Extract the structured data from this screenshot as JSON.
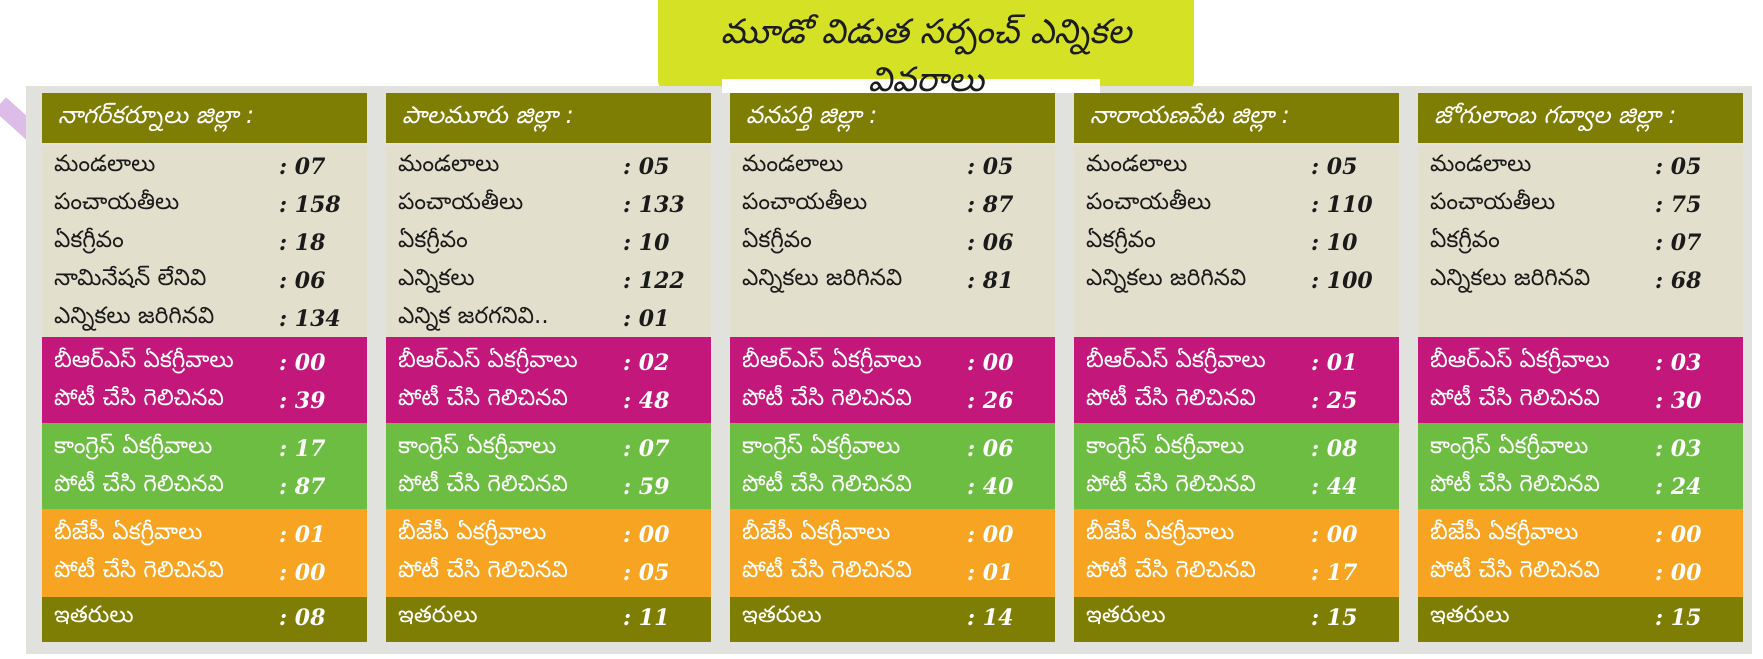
{
  "title": "మూడో విడుత సర్పంచ్ ఎన్నికల వివరాలు",
  "colors": {
    "header": "#7e7d04",
    "info_bg": "#e3dfcd",
    "brs": "#c4177c",
    "congress": "#6ebd43",
    "bjp": "#f7a422",
    "title_bg": "#d4e125"
  },
  "districts": [
    {
      "name": "నాగర్‌కర్నూలు జిల్లా :",
      "info": [
        {
          "label": "మండలాలు",
          "value": ": 07"
        },
        {
          "label": "పంచాయతీలు",
          "value": ": 158"
        },
        {
          "label": "ఏకగ్రీవం",
          "value": ": 18"
        },
        {
          "label": "నామినేషన్ లేనివి",
          "value": ":  06"
        },
        {
          "label": "ఎన్నికలు జరిగినవి",
          "value": ": 134"
        }
      ],
      "brs": [
        {
          "label": "బీఆర్ఎస్ ఏకగ్రీవాలు",
          "value": ": 00"
        },
        {
          "label": "పోటీ చేసి గెలిచినవి",
          "value": ": 39"
        }
      ],
      "congress": [
        {
          "label": "కాంగ్రెస్ ఏకగ్రీవాలు",
          "value": ": 17"
        },
        {
          "label": "పోటీ చేసి గెలిచినవి",
          "value": ": 87"
        }
      ],
      "bjp": [
        {
          "label": "బీజేపీ ఏకగ్రీవాలు",
          "value": ": 01"
        },
        {
          "label": "పోటీ చేసి గెలిచినవి",
          "value": ": 00"
        }
      ],
      "others": {
        "label": "ఇతరులు",
        "value": ": 08"
      }
    },
    {
      "name": "పాలమూరు జిల్లా :",
      "info": [
        {
          "label": "మండలాలు",
          "value": ": 05"
        },
        {
          "label": "పంచాయతీలు",
          "value": ": 133"
        },
        {
          "label": "ఏకగ్రీవం",
          "value": ": 10"
        },
        {
          "label": "ఎన్నికలు",
          "value": ": 122"
        },
        {
          "label": "ఎన్నిక జరగనివి..",
          "value": ": 01"
        }
      ],
      "brs": [
        {
          "label": "బీఆర్ఎస్ ఏకగ్రీవాలు",
          "value": ": 02"
        },
        {
          "label": "పోటీ చేసి గెలిచినవి",
          "value": ": 48"
        }
      ],
      "congress": [
        {
          "label": "కాంగ్రెస్ ఏకగ్రీవాలు",
          "value": ": 07"
        },
        {
          "label": "పోటీ చేసి గెలిచినవి",
          "value": ": 59"
        }
      ],
      "bjp": [
        {
          "label": "బీజేపీ ఏకగ్రీవాలు",
          "value": ": 00"
        },
        {
          "label": "పోటీ చేసి గెలిచినవి",
          "value": ": 05"
        }
      ],
      "others": {
        "label": "ఇతరులు",
        "value": ": 11"
      }
    },
    {
      "name": "వనపర్తి జిల్లా :",
      "info": [
        {
          "label": "మండలాలు",
          "value": ": 05"
        },
        {
          "label": "పంచాయతీలు",
          "value": ": 87"
        },
        {
          "label": "ఏకగ్రీవం",
          "value": ": 06"
        },
        {
          "label": "ఎన్నికలు జరిగినవి",
          "value": ": 81"
        }
      ],
      "brs": [
        {
          "label": "బీఆర్ఎస్ ఏకగ్రీవాలు",
          "value": ": 00"
        },
        {
          "label": "పోటీ చేసి గెలిచినవి",
          "value": ": 26"
        }
      ],
      "congress": [
        {
          "label": "కాంగ్రెస్ ఏకగ్రీవాలు",
          "value": ": 06"
        },
        {
          "label": "పోటీ చేసి గెలిచినవి",
          "value": ": 40"
        }
      ],
      "bjp": [
        {
          "label": "బీజేపీ ఏకగ్రీవాలు",
          "value": ": 00"
        },
        {
          "label": "పోటీ చేసి గెలిచినవి",
          "value": ": 01"
        }
      ],
      "others": {
        "label": "ఇతరులు",
        "value": ": 14"
      }
    },
    {
      "name": "నారాయణపేట జిల్లా :",
      "info": [
        {
          "label": "మండలాలు",
          "value": ": 05"
        },
        {
          "label": "పంచాయతీలు",
          "value": ": 110"
        },
        {
          "label": "ఏకగ్రీవం",
          "value": ": 10"
        },
        {
          "label": "ఎన్నికలు జరిగినవి",
          "value": ": 100"
        }
      ],
      "brs": [
        {
          "label": "బీఆర్ఎస్ ఏకగ్రీవాలు",
          "value": ": 01"
        },
        {
          "label": "పోటీ చేసి గెలిచినవి",
          "value": ": 25"
        }
      ],
      "congress": [
        {
          "label": "కాంగ్రెస్ ఏకగ్రీవాలు",
          "value": ": 08"
        },
        {
          "label": "పోటీ చేసి గెలిచినవి",
          "value": ": 44"
        }
      ],
      "bjp": [
        {
          "label": "బీజేపీ ఏకగ్రీవాలు",
          "value": ": 00"
        },
        {
          "label": "పోటీ చేసి గెలిచినవి",
          "value": ": 17"
        }
      ],
      "others": {
        "label": "ఇతరులు",
        "value": ": 15"
      }
    },
    {
      "name": "జోగులాంబ గద్వాల జిల్లా :",
      "info": [
        {
          "label": "మండలాలు",
          "value": ": 05"
        },
        {
          "label": "పంచాయతీలు",
          "value": ": 75"
        },
        {
          "label": "ఏకగ్రీవం",
          "value": ": 07"
        },
        {
          "label": "ఎన్నికలు జరిగినవి",
          "value": ": 68"
        }
      ],
      "brs": [
        {
          "label": "బీఆర్ఎస్ ఏకగ్రీవాలు",
          "value": ": 03"
        },
        {
          "label": "పోటీ చేసి గెలిచినవి",
          "value": ": 30"
        }
      ],
      "congress": [
        {
          "label": "కాంగ్రెస్ ఏకగ్రీవాలు",
          "value": ": 03"
        },
        {
          "label": "పోటీ చేసి గెలిచినవి",
          "value": ": 24"
        }
      ],
      "bjp": [
        {
          "label": "బీజేపీ ఏకగ్రీవాలు",
          "value": ": 00"
        },
        {
          "label": "పోటీ చేసి గెలిచినవి",
          "value": ": 00"
        }
      ],
      "others": {
        "label": "ఇతరులు",
        "value": ": 15"
      }
    }
  ]
}
